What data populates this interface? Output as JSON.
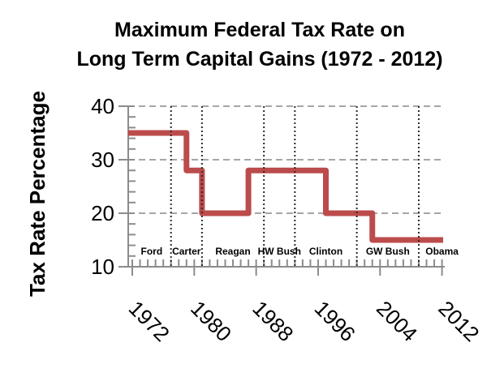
{
  "title": {
    "line1": "Maximum Federal Tax Rate on",
    "line2": "Long Term Capital Gains (1972 - 2012)"
  },
  "colors": {
    "line": "#BC4B4B",
    "axis": "#8C8C8C",
    "grid": "#A6A6A6",
    "divider": "#2B2B2B",
    "text": "#000000"
  },
  "chart_data": {
    "type": "line",
    "subtype": "step",
    "title": "Maximum Federal Tax Rate on Long Term Capital Gains (1972 - 2012)",
    "xlabel": "",
    "ylabel": "Tax Rate Percentage",
    "xlim": [
      1972,
      2012
    ],
    "ylim": [
      10,
      40
    ],
    "x_ticks": [
      1972,
      1980,
      1988,
      1996,
      2004,
      2012
    ],
    "y_ticks": [
      10,
      20,
      30,
      40
    ],
    "x_minor_step": 1,
    "y_minor_step": 2,
    "grid": "horizontal-dashed",
    "legend": "none",
    "line_color": "#BC4B4B",
    "steps": [
      {
        "start_year": 1972,
        "end_year": 1979,
        "rate": 35
      },
      {
        "start_year": 1979,
        "end_year": 1981,
        "rate": 28
      },
      {
        "start_year": 1981,
        "end_year": 1987,
        "rate": 20
      },
      {
        "start_year": 1987,
        "end_year": 1997,
        "rate": 28
      },
      {
        "start_year": 1997,
        "end_year": 2003,
        "rate": 20
      },
      {
        "start_year": 2003,
        "end_year": 2012,
        "rate": 15
      }
    ],
    "presidents": [
      {
        "name": "Ford",
        "start_year": 1972,
        "end_year": 1977,
        "label_year": 1974.5
      },
      {
        "name": "Carter",
        "start_year": 1977,
        "end_year": 1981,
        "label_year": 1979
      },
      {
        "name": "Reagan",
        "start_year": 1981,
        "end_year": 1989,
        "label_year": 1985
      },
      {
        "name": "HW Bush",
        "start_year": 1989,
        "end_year": 1993,
        "label_year": 1991
      },
      {
        "name": "Clinton",
        "start_year": 1993,
        "end_year": 2001,
        "label_year": 1997
      },
      {
        "name": "GW Bush",
        "start_year": 2001,
        "end_year": 2009,
        "label_year": 2005
      },
      {
        "name": "Obama",
        "start_year": 2009,
        "end_year": 2012,
        "label_year": 2012
      }
    ]
  }
}
